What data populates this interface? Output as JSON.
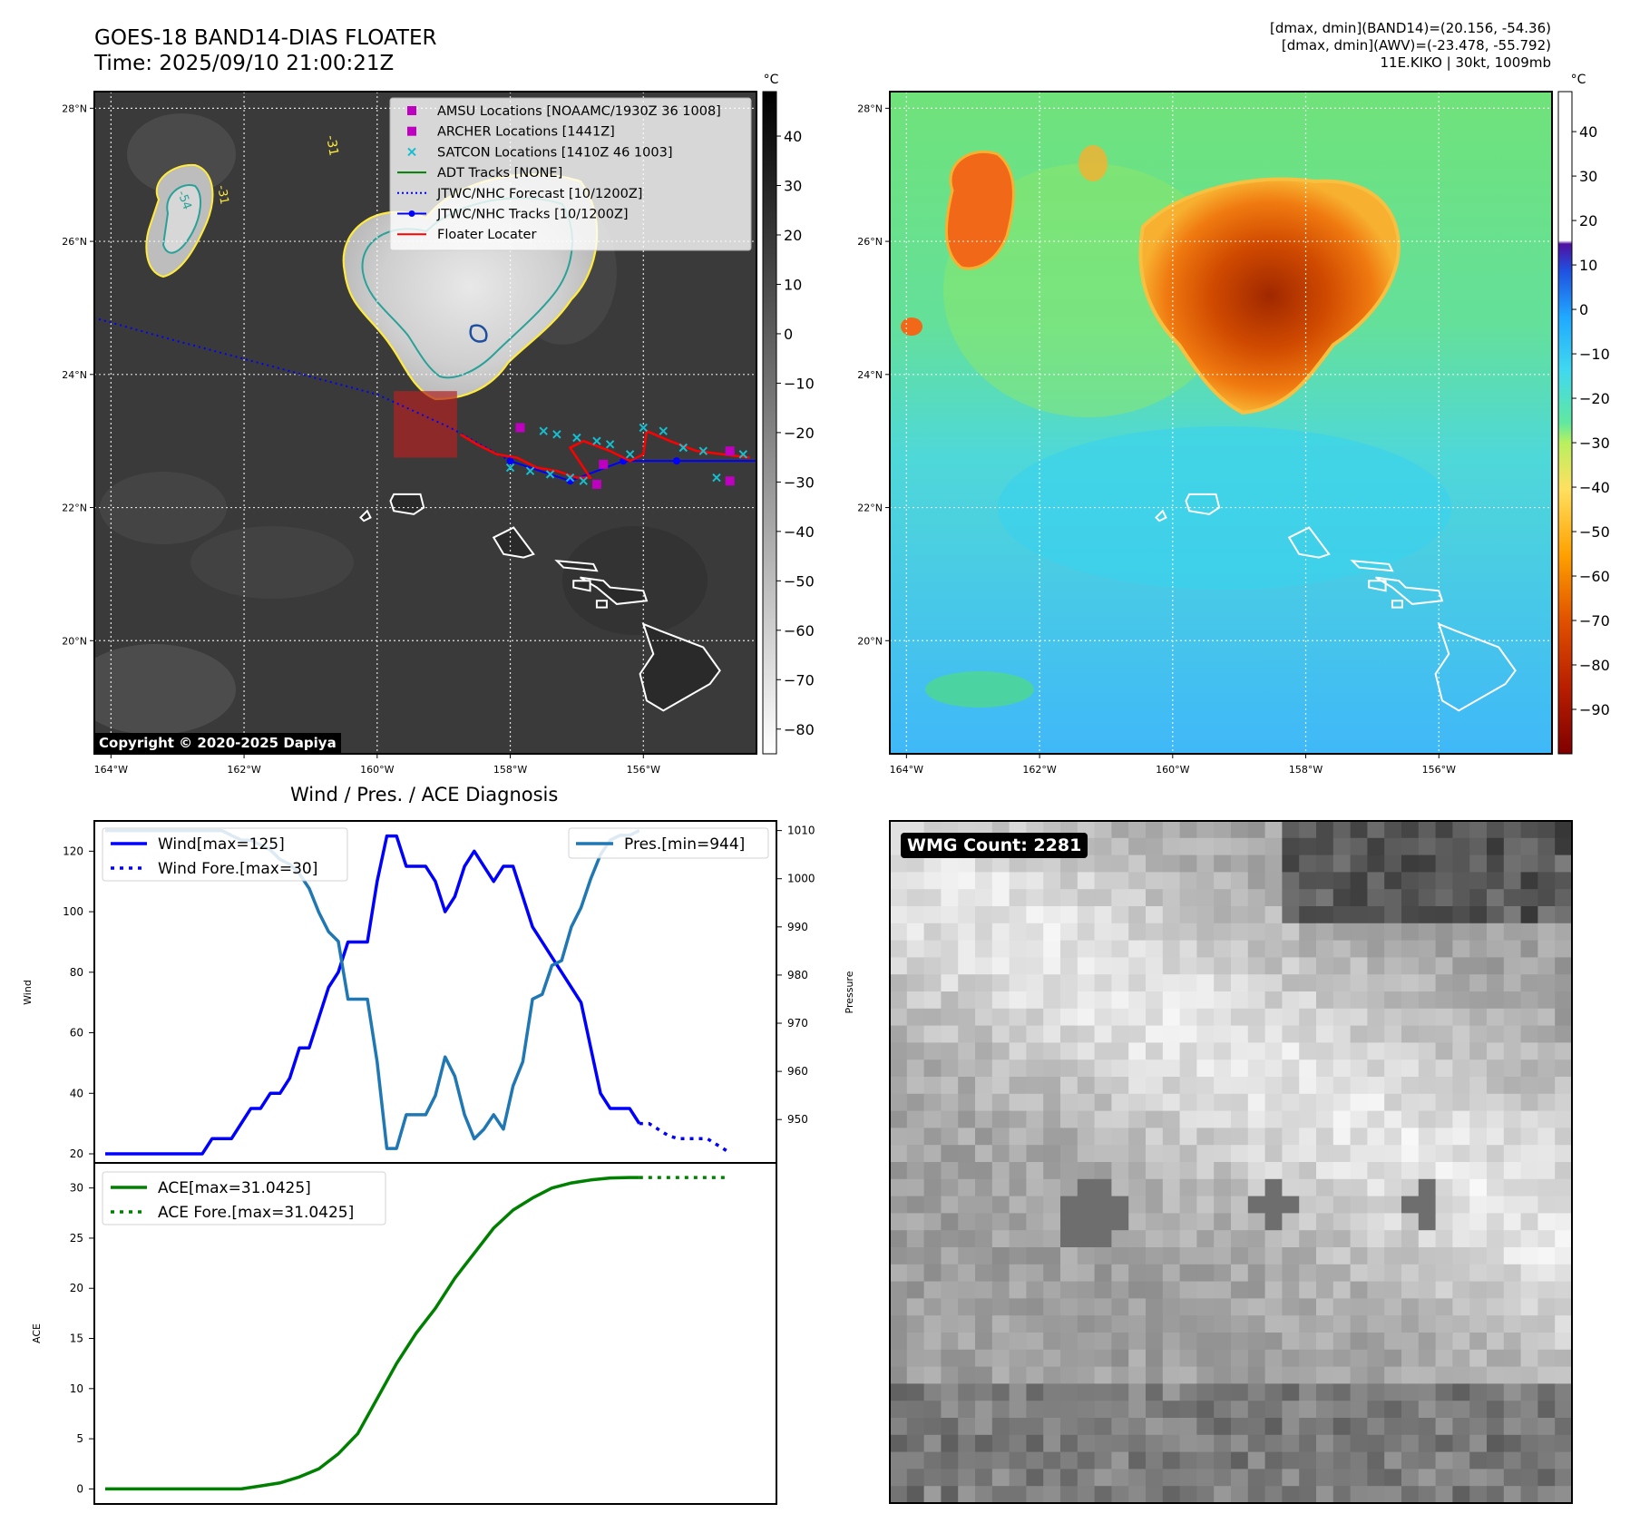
{
  "header": {
    "title_line1": "GOES-18 BAND14-DIAS FLOATER",
    "title_line2": "Time: 2025/09/10 21:00:21Z",
    "info_line1": "[dmax, dmin](BAND14)=(20.156, -54.36)",
    "info_line2": "[dmax, dmin](AWV)=(-23.478, -55.792)",
    "info_line3": "11E.KIKO | 30kt, 1009mb"
  },
  "map": {
    "lat_labels": [
      "28°N",
      "26°N",
      "24°N",
      "22°N",
      "20°N"
    ],
    "lat_values": [
      28,
      26,
      24,
      22,
      20
    ],
    "lon_labels": [
      "164°W",
      "162°W",
      "160°W",
      "158°W",
      "156°W"
    ],
    "lon_values": [
      164,
      162,
      160,
      158,
      156
    ],
    "extent": {
      "lon_west": 164.25,
      "lon_east": 154.3,
      "lat_south": 18.3,
      "lat_north": 28.25
    },
    "copyright": "Copyright © 2020-2025 Dapiya",
    "contour_labels": [
      "-54",
      "-31",
      "-31"
    ],
    "legend": [
      {
        "label": "AMSU Locations [NOAAMC/1930Z 36 1008]",
        "marker": "square",
        "color": "#c000c0"
      },
      {
        "label": "ARCHER Locations [1441Z]",
        "marker": "square",
        "color": "#c000c0"
      },
      {
        "label": "SATCON Locations [1410Z 46 1003]",
        "marker": "x",
        "color": "#17becf"
      },
      {
        "label": "ADT Tracks [NONE]",
        "marker": "line",
        "color": "#008000"
      },
      {
        "label": "JTWC/NHC Forecast [10/1200Z]",
        "marker": "dotted",
        "color": "#0000ff"
      },
      {
        "label": "JTWC/NHC Tracks [10/1200Z]",
        "marker": "line-dot",
        "color": "#0000ff"
      },
      {
        "label": "Floater Locater",
        "marker": "line",
        "color": "#ff0000"
      }
    ],
    "jtwc_track": [
      [
        154.3,
        22.7
      ],
      [
        155.5,
        22.7
      ],
      [
        156.3,
        22.7
      ],
      [
        157.1,
        22.4
      ],
      [
        158.0,
        22.7
      ],
      [
        158.9,
        23.2
      ],
      [
        160.0,
        23.7
      ],
      [
        161.5,
        24.1
      ],
      [
        163.0,
        24.5
      ],
      [
        164.25,
        24.85
      ]
    ],
    "floater_box": {
      "lon_west": 159.75,
      "lon_east": 158.8,
      "lat_north": 23.75,
      "lat_south": 22.75
    },
    "amsu_archer_points": [
      [
        157.85,
        23.2
      ],
      [
        156.6,
        22.65
      ],
      [
        156.7,
        22.35
      ],
      [
        154.7,
        22.85
      ],
      [
        154.7,
        22.4
      ]
    ],
    "satcon_points": [
      [
        157.5,
        23.15
      ],
      [
        157.3,
        23.1
      ],
      [
        157.0,
        23.05
      ],
      [
        156.7,
        23.0
      ],
      [
        156.5,
        22.95
      ],
      [
        156.2,
        22.8
      ],
      [
        156.0,
        23.2
      ],
      [
        155.7,
        23.15
      ],
      [
        155.4,
        22.9
      ],
      [
        155.1,
        22.85
      ],
      [
        154.9,
        22.45
      ],
      [
        154.5,
        22.8
      ],
      [
        158.0,
        22.6
      ],
      [
        157.7,
        22.55
      ],
      [
        157.4,
        22.5
      ],
      [
        157.1,
        22.45
      ],
      [
        156.9,
        22.4
      ]
    ],
    "colorbar_left": {
      "unit": "°C",
      "ticks": [
        40,
        30,
        20,
        10,
        0,
        -10,
        -20,
        -30,
        -40,
        -50,
        -60,
        -70,
        -80
      ],
      "vmin": -85,
      "vmax": 49
    },
    "colorbar_right": {
      "unit": "°C",
      "ticks": [
        40,
        30,
        20,
        10,
        0,
        -10,
        -20,
        -30,
        -40,
        -50,
        -60,
        -70,
        -80,
        -90
      ],
      "vmin": -100,
      "vmax": 49
    }
  },
  "chart_data": [
    {
      "type": "line",
      "title": "Wind / Pres. / ACE Diagnosis",
      "ylabel": "Wind",
      "ylabel_right": "Pressure",
      "ylim": [
        17,
        130
      ],
      "ylim_right": [
        941,
        1012
      ],
      "yticks": [
        20,
        40,
        60,
        80,
        100,
        120
      ],
      "yticks_right": [
        950,
        960,
        970,
        980,
        990,
        1000,
        1010
      ],
      "x_range": [
        0,
        68
      ],
      "series": [
        {
          "name": "Wind[max=125]",
          "color": "#0000ff",
          "style": "solid",
          "x": [
            0,
            1,
            2,
            3,
            4,
            5,
            6,
            7,
            8,
            9,
            10,
            11,
            12,
            13,
            14,
            15,
            16,
            17,
            18,
            19,
            20,
            21,
            22,
            23,
            24,
            25,
            26,
            27,
            28,
            29,
            30,
            31,
            32,
            33,
            34,
            35,
            36,
            37,
            38,
            39,
            40,
            41,
            42,
            43,
            44,
            45,
            46,
            47,
            48,
            49,
            50,
            51,
            52,
            53,
            54,
            55
          ],
          "y": [
            20,
            20,
            20,
            20,
            20,
            20,
            20,
            20,
            20,
            20,
            20,
            25,
            25,
            25,
            30,
            35,
            35,
            40,
            40,
            45,
            55,
            55,
            65,
            75,
            80,
            90,
            90,
            90,
            110,
            125,
            125,
            115,
            115,
            115,
            110,
            100,
            105,
            115,
            120,
            115,
            110,
            115,
            115,
            105,
            95,
            90,
            85,
            80,
            75,
            70,
            55,
            40,
            35,
            35,
            35,
            30
          ]
        },
        {
          "name": "Wind Fore.[max=30]",
          "color": "#0000ff",
          "style": "dotted",
          "x": [
            55,
            56,
            57,
            58,
            59,
            60,
            61,
            62,
            63,
            64
          ],
          "y": [
            30,
            30,
            28,
            26,
            25,
            25,
            25,
            25,
            23,
            21
          ]
        },
        {
          "name": "Pres.[min=944]",
          "color": "#1f77b4",
          "style": "solid",
          "x": [
            0,
            1,
            2,
            3,
            4,
            5,
            6,
            7,
            8,
            9,
            10,
            11,
            12,
            13,
            14,
            15,
            16,
            17,
            18,
            19,
            20,
            21,
            22,
            23,
            24,
            25,
            26,
            27,
            28,
            29,
            30,
            31,
            32,
            33,
            34,
            35,
            36,
            37,
            38,
            39,
            40,
            41,
            42,
            43,
            44,
            45,
            46,
            47,
            48,
            49,
            50,
            51,
            52,
            53,
            54,
            55
          ],
          "y": [
            1010,
            1010,
            1010,
            1010,
            1010,
            1010,
            1010,
            1010,
            1010,
            1010,
            1010,
            1010,
            1010,
            1009,
            1008,
            1008,
            1007,
            1006,
            1004,
            1003,
            1001,
            998,
            993,
            989,
            987,
            975,
            975,
            975,
            962,
            944,
            944,
            951,
            951,
            951,
            955,
            963,
            959,
            951,
            946,
            948,
            951,
            948,
            957,
            962,
            975,
            976,
            982,
            983,
            990,
            994,
            1000,
            1005,
            1008,
            1009,
            1009,
            1010
          ]
        }
      ]
    },
    {
      "type": "line",
      "ylabel": "ACE",
      "ylim": [
        -1.5,
        32.5
      ],
      "yticks": [
        0,
        5,
        10,
        15,
        20,
        25,
        30
      ],
      "x_range": [
        0,
        68
      ],
      "series": [
        {
          "name": "ACE[max=31.0425]",
          "color": "#008000",
          "style": "solid",
          "x": [
            0,
            2,
            4,
            6,
            8,
            10,
            12,
            14,
            16,
            18,
            20,
            22,
            24,
            26,
            28,
            30,
            32,
            34,
            36,
            38,
            40,
            42,
            44,
            46,
            48,
            50,
            52,
            54,
            55
          ],
          "y": [
            0,
            0,
            0,
            0,
            0,
            0,
            0,
            0,
            0.3,
            0.6,
            1.2,
            2.0,
            3.5,
            5.5,
            9.0,
            12.5,
            15.5,
            18.0,
            21.0,
            23.5,
            26.0,
            27.8,
            29.0,
            30.0,
            30.5,
            30.8,
            31.0,
            31.04,
            31.04
          ]
        },
        {
          "name": "ACE Fore.[max=31.0425]",
          "color": "#008000",
          "style": "dotted",
          "x": [
            55,
            57,
            59,
            61,
            64
          ],
          "y": [
            31.04,
            31.04,
            31.04,
            31.04,
            31.04
          ]
        }
      ]
    }
  ],
  "wmg": {
    "label": "WMG Count: 2281"
  }
}
